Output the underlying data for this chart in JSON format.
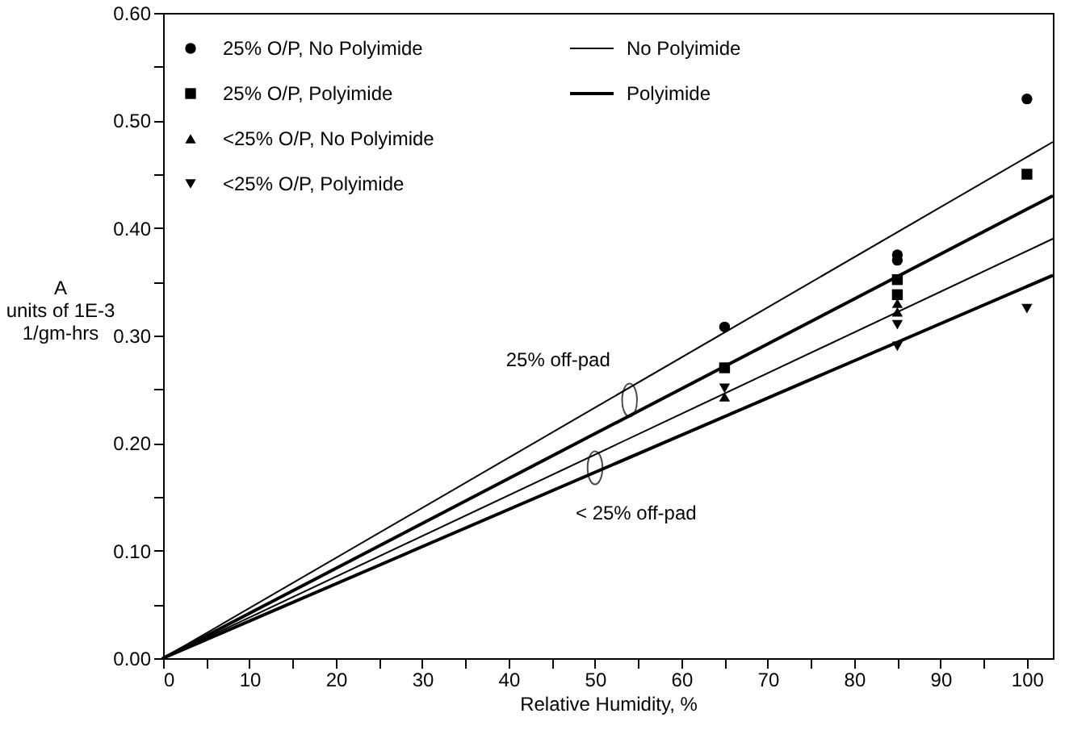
{
  "chart_data": {
    "type": "scatter",
    "xlabel": "Relative Humidity, %",
    "ylabel": "A\nunits of 1E-3\n1/gm-hrs",
    "xlim": [
      0,
      103
    ],
    "ylim": [
      0,
      0.6
    ],
    "xticks": [
      0,
      {
        "value": 5,
        "label": null
      },
      10,
      {
        "value": 15,
        "label": null
      },
      20,
      {
        "value": 25,
        "label": null
      },
      30,
      {
        "value": 35,
        "label": null
      },
      40,
      {
        "value": 45,
        "label": null
      },
      50,
      {
        "value": 55,
        "label": null
      },
      60,
      {
        "value": 65,
        "label": null
      },
      70,
      {
        "value": 75,
        "label": null
      },
      80,
      {
        "value": 85,
        "label": null
      },
      90,
      {
        "value": 95,
        "label": null
      },
      100
    ],
    "yticks": [
      {
        "value": 0,
        "label": "0.00"
      },
      {
        "value": 0.05,
        "label": null
      },
      {
        "value": 0.1,
        "label": "0.10"
      },
      {
        "value": 0.15,
        "label": null
      },
      {
        "value": 0.2,
        "label": "0.20"
      },
      {
        "value": 0.25,
        "label": null
      },
      {
        "value": 0.3,
        "label": "0.30"
      },
      {
        "value": 0.35,
        "label": null
      },
      {
        "value": 0.4,
        "label": "0.40"
      },
      {
        "value": 0.45,
        "label": null
      },
      {
        "value": 0.5,
        "label": "0.50"
      },
      {
        "value": 0.55,
        "label": null
      },
      {
        "value": 0.6,
        "label": "0.60"
      }
    ],
    "grid": false,
    "legend": "top left",
    "series": [
      {
        "name": "25% O/P, No Polyimide",
        "marker": "circle",
        "color": "#000000",
        "x": [
          65,
          85,
          85,
          100
        ],
        "values": [
          0.308,
          0.375,
          0.37,
          0.52
        ]
      },
      {
        "name": "25% O/P, Polyimide",
        "marker": "square",
        "color": "#000000",
        "x": [
          65,
          85,
          85,
          100
        ],
        "values": [
          0.27,
          0.352,
          0.338,
          0.45
        ]
      },
      {
        "name": "<25% O/P, No Polyimide",
        "marker": "triangle",
        "color": "#000000",
        "x": [
          65,
          85,
          85
        ],
        "values": [
          0.243,
          0.33,
          0.322
        ]
      },
      {
        "name": "<25% O/P, Polyimide",
        "marker": "triangle-down",
        "color": "#000000",
        "x": [
          65,
          85,
          85,
          100
        ],
        "values": [
          0.251,
          0.31,
          0.29,
          0.325
        ]
      },
      {
        "name": "No Polyimide",
        "type": "line",
        "color": "#000000",
        "x": [
          103,
          0,
          103
        ],
        "values": [
          0.48,
          0,
          0.39
        ]
      },
      {
        "name": "Polyimide",
        "type": "line",
        "color": "#000000",
        "x": [
          103,
          0,
          103
        ],
        "values": [
          0.43,
          0,
          0.356
        ]
      }
    ],
    "annotations": [
      {
        "text": "25% off-pad",
        "x": 54,
        "y": 0.24
      },
      {
        "text": "< 25% off-pad",
        "x": 50,
        "y": 0.177
      }
    ]
  }
}
